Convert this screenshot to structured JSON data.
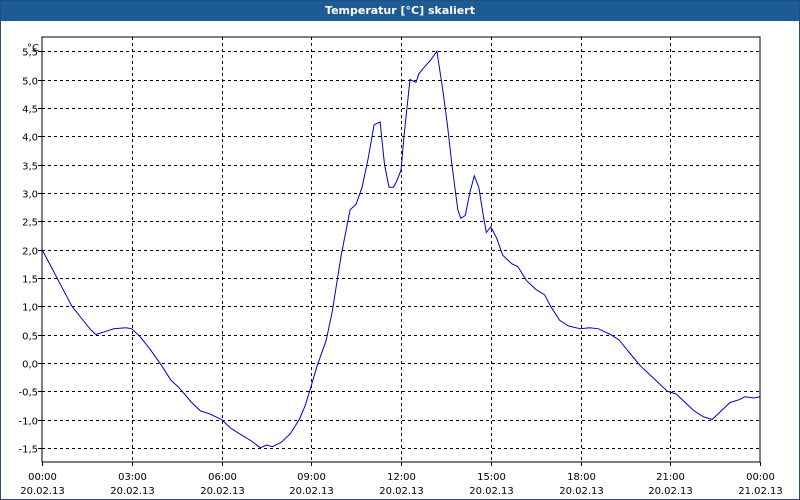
{
  "window": {
    "title": "Temperatur [°C] skaliert"
  },
  "chart_data": {
    "type": "line",
    "title": "Temperatur [°C] skaliert",
    "ylabel": "°C",
    "xlabel": "",
    "ylim": [
      -1.75,
      5.75
    ],
    "xlim": [
      0,
      24
    ],
    "y_ticks": [
      "5,5",
      "5,0",
      "4,5",
      "4,0",
      "3,5",
      "3,0",
      "2,5",
      "2,0",
      "1,5",
      "1,0",
      "0,5",
      "0,0",
      "-0,5",
      "-1,0",
      "-1,5"
    ],
    "y_tick_values": [
      5.5,
      5.0,
      4.5,
      4.0,
      3.5,
      3.0,
      2.5,
      2.0,
      1.5,
      1.0,
      0.5,
      0.0,
      -0.5,
      -1.0,
      -1.5
    ],
    "x_ticks": [
      {
        "time": "00:00",
        "date": "20.02.13",
        "hour": 0
      },
      {
        "time": "03:00",
        "date": "20.02.13",
        "hour": 3
      },
      {
        "time": "06:00",
        "date": "20.02.13",
        "hour": 6
      },
      {
        "time": "09:00",
        "date": "20.02.13",
        "hour": 9
      },
      {
        "time": "12:00",
        "date": "20.02.13",
        "hour": 12
      },
      {
        "time": "15:00",
        "date": "20.02.13",
        "hour": 15
      },
      {
        "time": "18:00",
        "date": "20.02.13",
        "hour": 18
      },
      {
        "time": "21:00",
        "date": "20.02.13",
        "hour": 21
      },
      {
        "time": "00:00",
        "date": "21.02.13",
        "hour": 24
      }
    ],
    "grid": true,
    "series": [
      {
        "color": "#0000c8",
        "x": [
          0,
          0.3,
          0.7,
          1.0,
          1.3,
          1.6,
          1.8,
          2.1,
          2.4,
          2.8,
          3.0,
          3.3,
          3.6,
          4.0,
          4.3,
          4.6,
          5.0,
          5.3,
          5.6,
          6.0,
          6.3,
          6.6,
          7.0,
          7.3,
          7.5,
          7.7,
          8.0,
          8.3,
          8.6,
          8.8,
          9.0,
          9.2,
          9.5,
          9.7,
          10.0,
          10.3,
          10.5,
          10.7,
          10.9,
          11.1,
          11.3,
          11.45,
          11.6,
          11.75,
          11.85,
          12.0,
          12.1,
          12.3,
          12.5,
          12.6,
          12.75,
          13.0,
          13.2,
          13.4,
          13.55,
          13.7,
          13.9,
          14.0,
          14.15,
          14.3,
          14.45,
          14.6,
          14.75,
          14.85,
          15.0,
          15.2,
          15.4,
          15.5,
          15.7,
          15.9,
          16.2,
          16.5,
          16.8,
          17.0,
          17.3,
          17.6,
          18.0,
          18.3,
          18.6,
          19.0,
          19.3,
          19.6,
          20.0,
          20.3,
          20.6,
          20.9,
          21.2,
          21.5,
          21.8,
          22.1,
          22.4,
          22.7,
          23.0,
          23.3,
          23.5,
          23.8,
          24.0
        ],
        "y": [
          2.0,
          1.7,
          1.3,
          1.0,
          0.8,
          0.6,
          0.5,
          0.55,
          0.6,
          0.62,
          0.6,
          0.45,
          0.25,
          -0.05,
          -0.3,
          -0.45,
          -0.7,
          -0.85,
          -0.9,
          -1.0,
          -1.15,
          -1.25,
          -1.38,
          -1.5,
          -1.45,
          -1.48,
          -1.4,
          -1.25,
          -1.0,
          -0.75,
          -0.4,
          -0.05,
          0.4,
          0.9,
          1.9,
          2.7,
          2.8,
          3.1,
          3.6,
          4.2,
          4.25,
          3.5,
          3.1,
          3.1,
          3.2,
          3.4,
          4.0,
          5.0,
          4.95,
          5.1,
          5.2,
          5.35,
          5.5,
          4.8,
          4.2,
          3.5,
          2.7,
          2.55,
          2.6,
          3.0,
          3.3,
          3.1,
          2.6,
          2.3,
          2.4,
          2.2,
          1.9,
          1.85,
          1.75,
          1.7,
          1.45,
          1.3,
          1.2,
          1.0,
          0.75,
          0.65,
          0.6,
          0.62,
          0.6,
          0.5,
          0.4,
          0.2,
          -0.05,
          -0.2,
          -0.35,
          -0.5,
          -0.55,
          -0.7,
          -0.85,
          -0.95,
          -1.0,
          -0.85,
          -0.7,
          -0.65,
          -0.6,
          -0.62,
          -0.6
        ]
      }
    ]
  }
}
